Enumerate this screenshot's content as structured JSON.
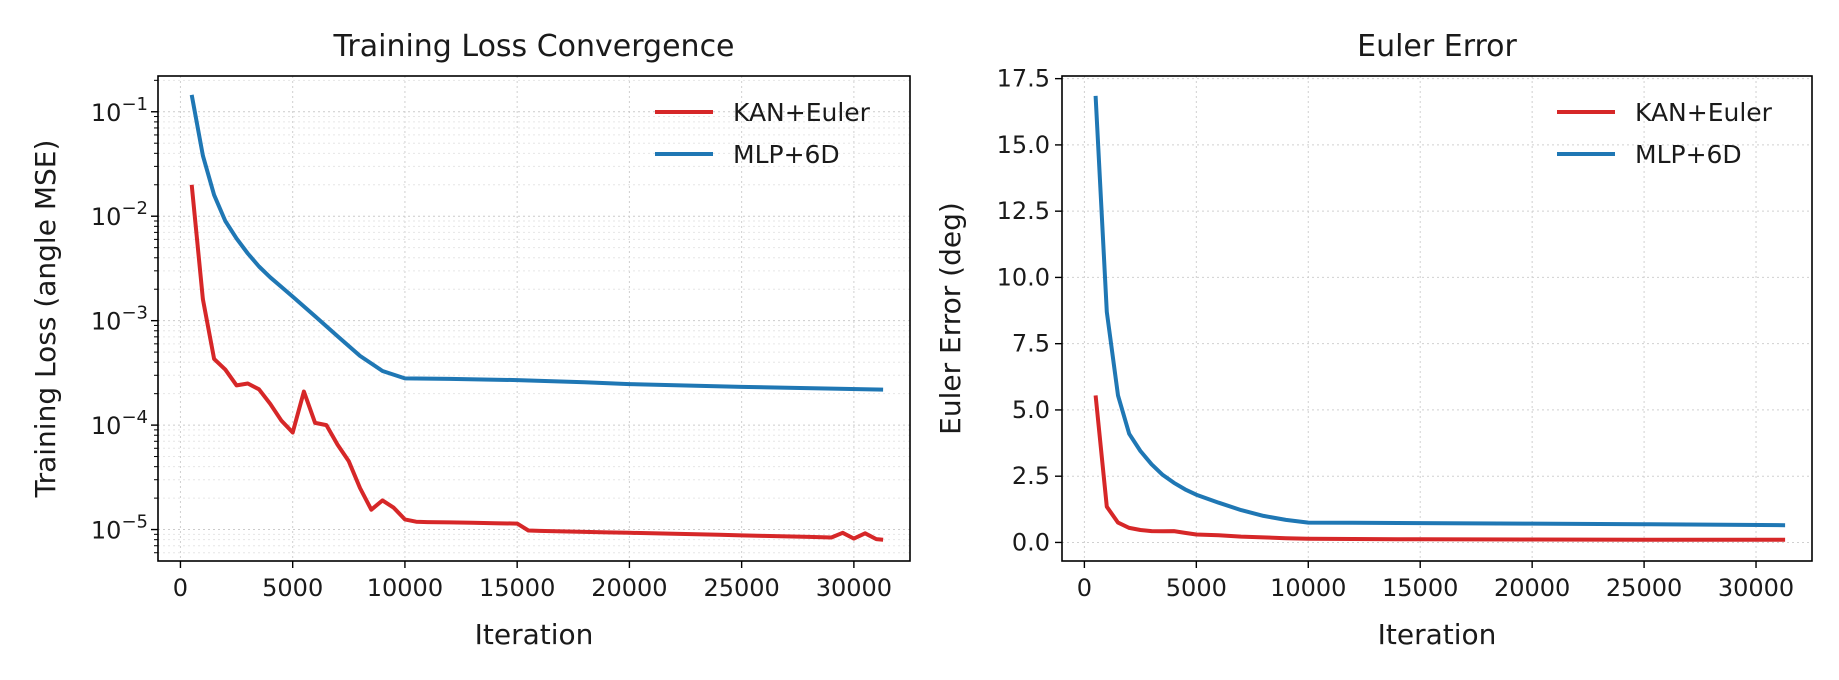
{
  "chart_data": [
    {
      "type": "line",
      "title": "Training Loss Convergence",
      "xlabel": "Iteration",
      "ylabel": "Training Loss (angle MSE)",
      "yscale": "log",
      "xlim": [
        -1000,
        32500
      ],
      "ylim": [
        5e-06,
        0.22
      ],
      "xticks": [
        0,
        5000,
        10000,
        15000,
        20000,
        25000,
        30000
      ],
      "xtick_labels": [
        "0",
        "5000",
        "10000",
        "15000",
        "20000",
        "25000",
        "30000"
      ],
      "yticks": [
        1e-05,
        0.0001,
        0.001,
        0.01,
        0.1
      ],
      "ytick_labels": [
        {
          "base": "10",
          "exp": "−5"
        },
        {
          "base": "10",
          "exp": "−4"
        },
        {
          "base": "10",
          "exp": "−3"
        },
        {
          "base": "10",
          "exp": "−2"
        },
        {
          "base": "10",
          "exp": "−1"
        }
      ],
      "grid": true,
      "legend_position": "top-right",
      "series": [
        {
          "name": "KAN+Euler",
          "color": "#d62728",
          "x": [
            500,
            1000,
            1500,
            2000,
            2500,
            3000,
            3500,
            4000,
            4500,
            5000,
            5500,
            6000,
            6500,
            7000,
            7500,
            8000,
            8500,
            9000,
            9500,
            10000,
            10500,
            11000,
            12000,
            13000,
            14000,
            15000,
            15500,
            16000,
            17000,
            18000,
            19000,
            20000,
            21000,
            22000,
            23000,
            24000,
            25000,
            26000,
            27000,
            28000,
            29000,
            29500,
            30000,
            30500,
            31000,
            31300
          ],
          "y": [
            0.02,
            0.0016,
            0.00043,
            0.00034,
            0.00024,
            0.00025,
            0.00022,
            0.00016,
            0.00011,
            8.5e-05,
            0.00021,
            0.000105,
            0.0001,
            6.5e-05,
            4.5e-05,
            2.5e-05,
            1.55e-05,
            1.9e-05,
            1.62e-05,
            1.25e-05,
            1.19e-05,
            1.18e-05,
            1.17e-05,
            1.16e-05,
            1.15e-05,
            1.14e-05,
            9.8e-06,
            9.7e-06,
            9.6e-06,
            9.5e-06,
            9.4e-06,
            9.3e-06,
            9.2e-06,
            9.1e-06,
            9e-06,
            8.9e-06,
            8.8e-06,
            8.7e-06,
            8.6e-06,
            8.5e-06,
            8.4e-06,
            9.3e-06,
            8.2e-06,
            9.2e-06,
            8.1e-06,
            8e-06
          ]
        },
        {
          "name": "MLP+6D",
          "color": "#1f77b4",
          "x": [
            500,
            1000,
            1500,
            2000,
            2500,
            3000,
            3500,
            4000,
            4500,
            5000,
            6000,
            7000,
            8000,
            9000,
            10000,
            12000,
            15000,
            18000,
            20000,
            25000,
            31300
          ],
          "y": [
            0.145,
            0.038,
            0.016,
            0.009,
            0.0061,
            0.0044,
            0.0033,
            0.0026,
            0.0021,
            0.0017,
            0.0011,
            0.00071,
            0.00046,
            0.00033,
            0.00028,
            0.000277,
            0.00027,
            0.000257,
            0.000247,
            0.000232,
            0.000219
          ]
        }
      ]
    },
    {
      "type": "line",
      "title": "Euler Error",
      "xlabel": "Iteration",
      "ylabel": "Euler Error (deg)",
      "yscale": "linear",
      "xlim": [
        -1000,
        32500
      ],
      "ylim": [
        -0.7,
        17.6
      ],
      "xticks": [
        0,
        5000,
        10000,
        15000,
        20000,
        25000,
        30000
      ],
      "xtick_labels": [
        "0",
        "5000",
        "10000",
        "15000",
        "20000",
        "25000",
        "30000"
      ],
      "yticks": [
        0.0,
        2.5,
        5.0,
        7.5,
        10.0,
        12.5,
        15.0,
        17.5
      ],
      "ytick_labels": [
        "0.0",
        "2.5",
        "5.0",
        "7.5",
        "10.0",
        "12.5",
        "15.0",
        "17.5"
      ],
      "grid": true,
      "legend_position": "top-right",
      "series": [
        {
          "name": "KAN+Euler",
          "color": "#d62728",
          "x": [
            500,
            1000,
            1500,
            2000,
            2500,
            3000,
            3500,
            4000,
            4500,
            5000,
            6000,
            7000,
            8000,
            9000,
            10000,
            12000,
            15000,
            20000,
            25000,
            31300
          ],
          "y": [
            5.55,
            1.35,
            0.75,
            0.55,
            0.47,
            0.43,
            0.42,
            0.43,
            0.36,
            0.3,
            0.27,
            0.22,
            0.19,
            0.16,
            0.14,
            0.13,
            0.12,
            0.11,
            0.1,
            0.1
          ]
        },
        {
          "name": "MLP+6D",
          "color": "#1f77b4",
          "x": [
            500,
            1000,
            1500,
            2000,
            2500,
            3000,
            3500,
            4000,
            4500,
            5000,
            6000,
            7000,
            8000,
            9000,
            10000,
            12000,
            15000,
            20000,
            25000,
            31300
          ],
          "y": [
            16.85,
            8.7,
            5.55,
            4.1,
            3.45,
            2.95,
            2.55,
            2.25,
            2.0,
            1.8,
            1.5,
            1.22,
            1.0,
            0.85,
            0.75,
            0.74,
            0.73,
            0.71,
            0.69,
            0.65
          ]
        }
      ]
    }
  ]
}
